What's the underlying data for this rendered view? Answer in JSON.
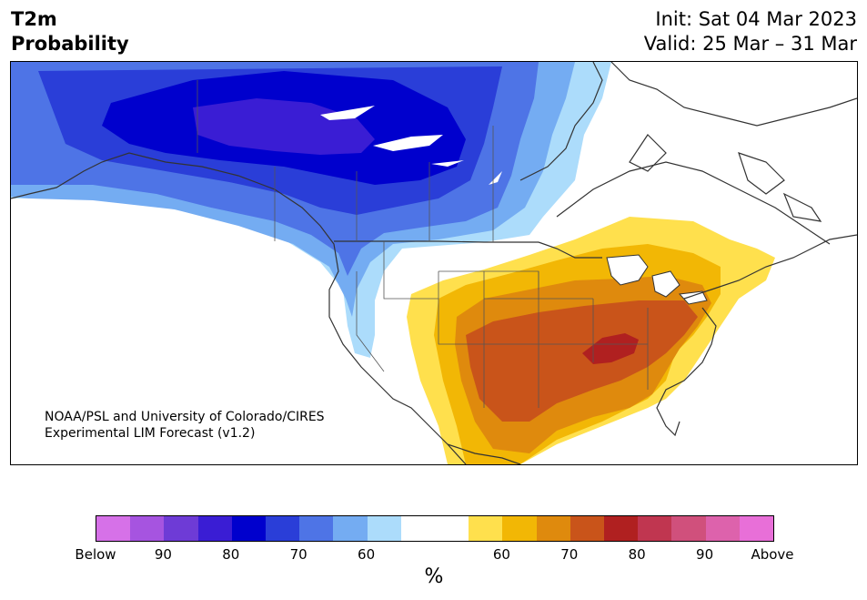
{
  "header": {
    "title_line1": "T2m",
    "title_line2": "Probability",
    "init_text": "Init: Sat 04 Mar 2023",
    "valid_text": "Valid: 25 Mar – 31 Mar"
  },
  "credit": {
    "line1": "NOAA/PSL and University of Colorado/CIRES",
    "line2": "Experimental LIM Forecast (v1.2)"
  },
  "colorbar": {
    "colors": [
      "#d671e8",
      "#a654e0",
      "#6e3bd6",
      "#3a1dd4",
      "#0000cd",
      "#2a3ed8",
      "#4e74e6",
      "#74acf2",
      "#acdcfb",
      "#ffffff",
      "#ffffff",
      "#ffe04d",
      "#f2b705",
      "#df8a0d",
      "#c9541a",
      "#b02020",
      "#c03650",
      "#d0507c",
      "#dd62ac",
      "#e86fd8"
    ],
    "tick_labels": [
      "Below",
      "90",
      "80",
      "70",
      "60",
      "60",
      "70",
      "80",
      "90",
      "Above"
    ],
    "units": "%"
  },
  "map": {
    "region": "North America",
    "below_colors": {
      "p60": "#acdcfb",
      "p65": "#74acf2",
      "p70": "#4e74e6",
      "p75": "#2a3ed8",
      "p80": "#0000cd",
      "p85": "#3a1dd4"
    },
    "above_colors": {
      "p60": "#ffe04d",
      "p65": "#f2b705",
      "p70": "#df8a0d",
      "p75": "#c9541a",
      "p80": "#b02020"
    },
    "outline_color": "#333333"
  }
}
